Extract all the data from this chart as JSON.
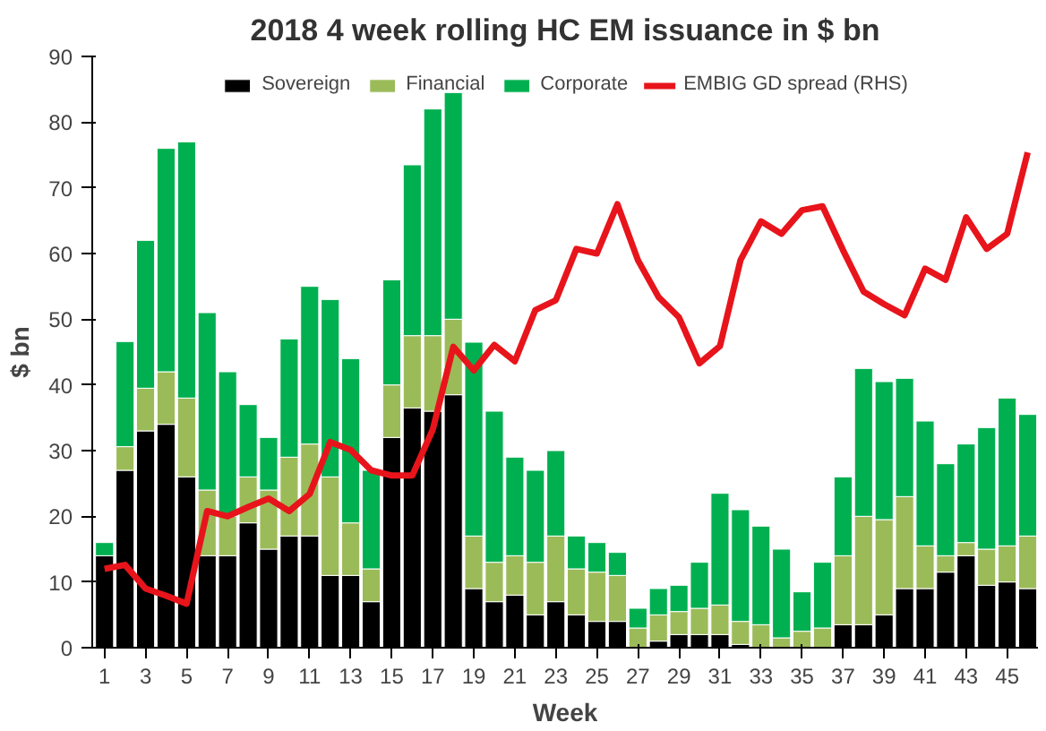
{
  "chart_data": {
    "type": "bar",
    "stacked": true,
    "title": "2018 4 week rolling HC EM issuance in $ bn",
    "xlabel": "Week",
    "ylabel": "$ bn",
    "x": [
      1,
      2,
      3,
      4,
      5,
      6,
      7,
      8,
      9,
      10,
      11,
      12,
      13,
      14,
      15,
      16,
      17,
      18,
      19,
      20,
      21,
      22,
      23,
      24,
      25,
      26,
      27,
      28,
      29,
      30,
      31,
      32,
      33,
      34,
      35,
      36,
      37,
      38,
      39,
      40,
      41,
      42,
      43,
      44,
      45,
      46
    ],
    "xlim": [
      0.4,
      46.5
    ],
    "xticks": [
      1,
      3,
      5,
      7,
      9,
      11,
      13,
      15,
      17,
      19,
      21,
      23,
      25,
      27,
      29,
      31,
      33,
      35,
      37,
      39,
      41,
      43,
      45
    ],
    "ylim": [
      0,
      90
    ],
    "yticks": [
      0,
      10,
      20,
      30,
      40,
      50,
      60,
      70,
      80,
      90
    ],
    "grid": false,
    "legend": "top",
    "series": [
      {
        "name": "Sovereign",
        "color": "#000000",
        "values": [
          14,
          27,
          33,
          34,
          26,
          14,
          14,
          19,
          15,
          17,
          17,
          11,
          11,
          7,
          32,
          36.5,
          36,
          38.5,
          9,
          7,
          8,
          5,
          7,
          5,
          4,
          4,
          0,
          1,
          2,
          2,
          2,
          0.5,
          0,
          0,
          0,
          0,
          3.5,
          3.5,
          5,
          9,
          9,
          11.5,
          14,
          9.5,
          10,
          9
        ]
      },
      {
        "name": "Financial",
        "color": "#9bbb59",
        "values": [
          0,
          3.6,
          6.5,
          8,
          12,
          10,
          6,
          7,
          9,
          12,
          14,
          15,
          8,
          5,
          8,
          11,
          11.5,
          11.5,
          8,
          6,
          6,
          8,
          10,
          7,
          7.5,
          7,
          3,
          4,
          3.5,
          4,
          4.5,
          3.5,
          3.5,
          1.5,
          2.5,
          3,
          10.5,
          16.5,
          14.5,
          14,
          6.5,
          2.5,
          2,
          5.5,
          5.5,
          8
        ]
      },
      {
        "name": "Corporate",
        "color": "#00b050",
        "values": [
          2,
          16,
          22.5,
          34,
          39,
          27,
          22,
          11,
          8,
          18,
          24,
          27,
          25,
          15,
          16,
          26,
          34.5,
          34.5,
          29.5,
          23,
          15,
          14,
          13,
          5,
          4.5,
          3.5,
          3,
          4,
          4,
          7,
          17,
          17,
          15,
          13.5,
          6,
          10,
          12,
          22.5,
          21,
          18,
          19,
          14,
          15,
          18.5,
          22.5,
          18.5
        ]
      },
      {
        "name": "EMBIG GD spread (RHS)",
        "type": "line",
        "color": "#e8141b",
        "values": [
          12,
          12.6,
          9,
          7.9,
          6.7,
          20.8,
          20,
          21.4,
          22.7,
          20.8,
          23.4,
          31.3,
          30.1,
          27,
          26.2,
          26.2,
          33.2,
          45.8,
          42.2,
          46.1,
          43.6,
          51.4,
          52.9,
          60.7,
          60,
          67.5,
          59,
          53.4,
          50.3,
          43.3,
          45.9,
          59,
          64.9,
          63,
          66.6,
          67.2,
          60.5,
          54.2,
          52.3,
          50.6,
          57.7,
          56,
          65.5,
          60.7,
          63,
          75.4
        ]
      }
    ]
  }
}
